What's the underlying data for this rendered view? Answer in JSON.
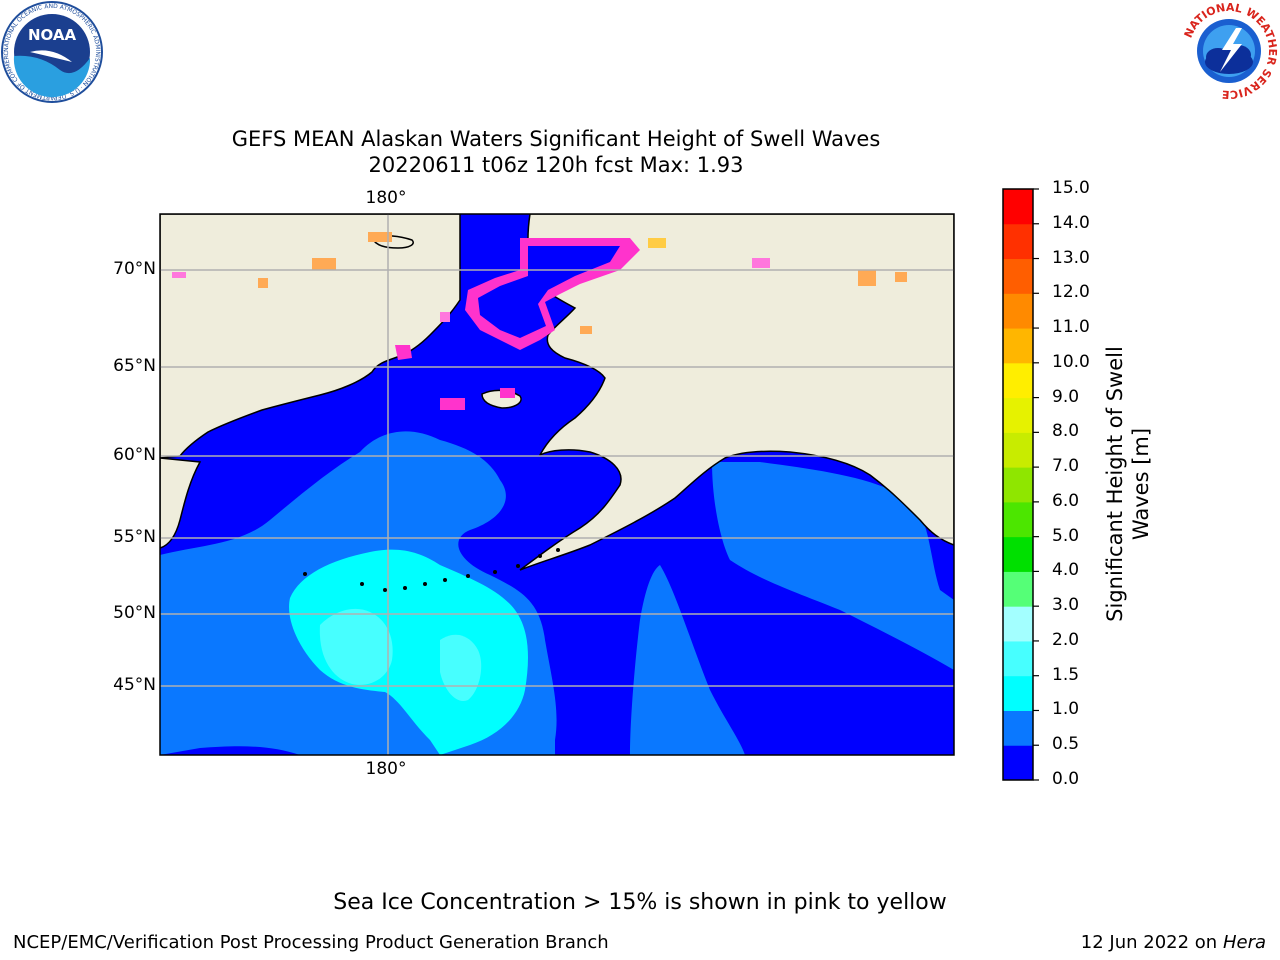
{
  "title": {
    "line1": "GEFS MEAN Alaskan Waters Significant Height of Swell Waves",
    "line2": "20220611 t06z 120h fcst   Max: 1.93"
  },
  "map": {
    "lon_labels": {
      "top": "180°",
      "bottom": "180°"
    },
    "lat_labels": [
      "70°N",
      "65°N",
      "60°N",
      "55°N",
      "50°N",
      "45°N"
    ],
    "land_color": "#efeddc",
    "grid_color": "#b0b0b0"
  },
  "colorbar": {
    "title": "Significant Height of Swell Waves [m]",
    "ticks": [
      "0.0",
      "0.5",
      "1.0",
      "1.5",
      "2.0",
      "3.0",
      "4.0",
      "5.0",
      "6.0",
      "7.0",
      "8.0",
      "9.0",
      "10.0",
      "11.0",
      "12.0",
      "13.0",
      "14.0",
      "15.0"
    ],
    "colors": [
      "#0000ff",
      "#0a78ff",
      "#00ffff",
      "#47ffff",
      "#a3ffff",
      "#55ff77",
      "#00e000",
      "#4ce600",
      "#8fe600",
      "#c8ec00",
      "#e6f200",
      "#ffee00",
      "#ffb600",
      "#ff8a00",
      "#ff5e00",
      "#ff3000",
      "#ff0000"
    ]
  },
  "ice_colors": [
    "#ff33cc",
    "#ff77dd",
    "#ffaa55",
    "#ffcc44"
  ],
  "note": "Sea Ice Concentration > 15% is shown in pink to yellow",
  "footer": {
    "left": "NCEP/EMC/Verification Post Processing Product Generation Branch",
    "right_date": "12 Jun 2022 on",
    "right_host": "Hera"
  },
  "logos": {
    "noaa": {
      "text": "NOAA",
      "ring_text": "NATIONAL OCEANIC AND ATMOSPHERIC ADMINISTRATION · U.S. DEPARTMENT OF COMMERCE"
    },
    "nws": {
      "ring_text": "NATIONAL WEATHER SERVICE"
    }
  }
}
